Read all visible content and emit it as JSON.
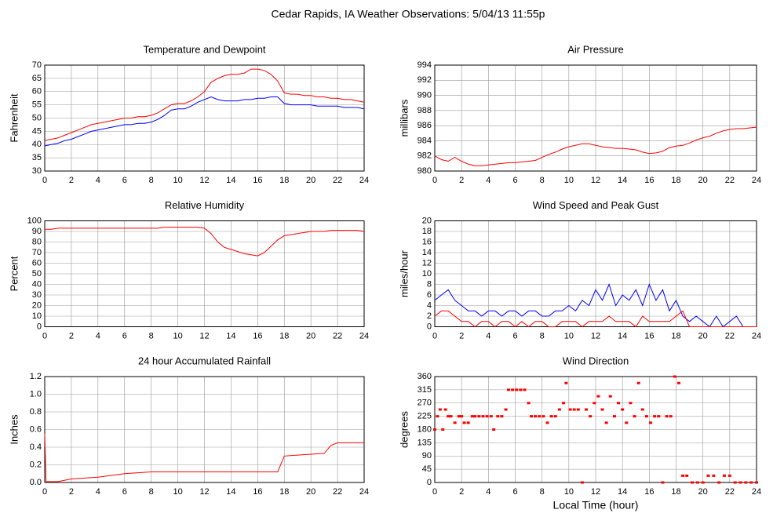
{
  "title": "Cedar Rapids, IA Weather Observations: 5/04/13 11:55p",
  "chart_data": [
    {
      "type": "line",
      "title": "Temperature and Dewpoint",
      "ylabel": "Fahrenheit",
      "x": [
        0,
        0.5,
        1,
        1.5,
        2,
        2.5,
        3,
        3.5,
        4,
        4.5,
        5,
        5.5,
        6,
        6.5,
        7,
        7.5,
        8,
        8.5,
        9,
        9.5,
        10,
        10.5,
        11,
        11.5,
        12,
        12.5,
        13,
        13.5,
        14,
        14.5,
        15,
        15.5,
        16,
        16.5,
        17,
        17.5,
        18,
        18.5,
        19,
        19.5,
        20,
        20.5,
        21,
        21.5,
        22,
        22.5,
        23,
        23.5,
        24
      ],
      "series": [
        {
          "color": "#ff0000",
          "values": [
            41.5,
            42,
            42.5,
            43.5,
            44.5,
            45.5,
            46.5,
            47.5,
            48,
            48.5,
            49,
            49.5,
            50,
            50,
            50.5,
            50.5,
            51,
            52,
            53.5,
            55,
            55.5,
            55.5,
            56.5,
            58,
            60,
            63.5,
            65,
            66,
            66.5,
            66.5,
            67,
            68.5,
            68.5,
            68,
            66.5,
            64,
            59.5,
            59,
            59,
            58.5,
            58.5,
            58,
            58,
            57.5,
            57.5,
            57,
            57,
            56.5,
            56
          ]
        },
        {
          "color": "#0000ff",
          "values": [
            39.5,
            40,
            40.5,
            41.5,
            42,
            43,
            44,
            45,
            45.5,
            46,
            46.5,
            47,
            47.5,
            47.5,
            48,
            48,
            48.5,
            49.5,
            51,
            53,
            53.5,
            53.5,
            54.5,
            56,
            57,
            58,
            57,
            56.5,
            56.5,
            56.5,
            57,
            57,
            57.5,
            57.5,
            58,
            58,
            55.5,
            55,
            55,
            55,
            55,
            54.5,
            54.5,
            54.5,
            54.5,
            54,
            54,
            54,
            53.5
          ]
        }
      ],
      "xlim": [
        0,
        24
      ],
      "xticks": [
        0,
        2,
        4,
        6,
        8,
        10,
        12,
        14,
        16,
        18,
        20,
        22,
        24
      ],
      "ylim": [
        30,
        70
      ],
      "yticks": [
        30,
        35,
        40,
        45,
        50,
        55,
        60,
        65,
        70
      ],
      "grid": true
    },
    {
      "type": "line",
      "title": "Air Pressure",
      "ylabel": "millibars",
      "x": [
        0,
        0.5,
        1,
        1.5,
        2,
        2.5,
        3,
        3.5,
        4,
        4.5,
        5,
        5.5,
        6,
        6.5,
        7,
        7.5,
        8,
        8.5,
        9,
        9.5,
        10,
        10.5,
        11,
        11.5,
        12,
        12.5,
        13,
        13.5,
        14,
        14.5,
        15,
        15.5,
        16,
        16.5,
        17,
        17.5,
        18,
        18.5,
        19,
        19.5,
        20,
        20.5,
        21,
        21.5,
        22,
        22.5,
        23,
        23.5,
        24
      ],
      "series": [
        {
          "color": "#ff0000",
          "values": [
            982,
            981.5,
            981.3,
            981.8,
            981.3,
            980.9,
            980.7,
            980.7,
            980.8,
            980.9,
            981,
            981.1,
            981.1,
            981.2,
            981.3,
            981.4,
            981.8,
            982.2,
            982.5,
            982.9,
            983.2,
            983.4,
            983.6,
            983.6,
            983.4,
            983.2,
            983.1,
            983,
            983,
            982.9,
            982.8,
            982.5,
            982.3,
            982.4,
            982.6,
            983.1,
            983.3,
            983.4,
            983.7,
            984.1,
            984.4,
            984.6,
            985,
            985.3,
            985.5,
            985.6,
            985.6,
            985.7,
            985.8
          ]
        }
      ],
      "xlim": [
        0,
        24
      ],
      "xticks": [
        0,
        2,
        4,
        6,
        8,
        10,
        12,
        14,
        16,
        18,
        20,
        22,
        24
      ],
      "ylim": [
        980,
        994
      ],
      "yticks": [
        980,
        982,
        984,
        986,
        988,
        990,
        992,
        994
      ],
      "grid": true
    },
    {
      "type": "line",
      "title": "Relative Humidity",
      "ylabel": "Percent",
      "x": [
        0,
        0.5,
        1,
        1.5,
        2,
        2.5,
        3,
        3.5,
        4,
        4.5,
        5,
        5.5,
        6,
        6.5,
        7,
        7.5,
        8,
        8.5,
        9,
        9.5,
        10,
        10.5,
        11,
        11.5,
        12,
        12.5,
        13,
        13.5,
        14,
        14.5,
        15,
        15.5,
        16,
        16.5,
        17,
        17.5,
        18,
        18.5,
        19,
        19.5,
        20,
        20.5,
        21,
        21.5,
        22,
        22.5,
        23,
        23.5,
        24
      ],
      "series": [
        {
          "color": "#ff0000",
          "values": [
            92,
            92,
            93,
            93,
            93,
            93,
            93,
            93,
            93,
            93,
            93,
            93,
            93,
            93,
            93,
            93,
            93,
            93,
            94,
            94,
            94,
            94,
            94,
            94,
            93,
            88,
            80,
            75,
            73,
            71,
            69,
            68,
            67,
            70,
            76,
            82,
            86,
            87,
            88,
            89,
            90,
            90,
            90,
            91,
            91,
            91,
            91,
            91,
            90
          ]
        }
      ],
      "xlim": [
        0,
        24
      ],
      "xticks": [
        0,
        2,
        4,
        6,
        8,
        10,
        12,
        14,
        16,
        18,
        20,
        22,
        24
      ],
      "ylim": [
        0,
        100
      ],
      "yticks": [
        0,
        10,
        20,
        30,
        40,
        50,
        60,
        70,
        80,
        90,
        100
      ],
      "grid": true
    },
    {
      "type": "line",
      "title": "Wind Speed and Peak Gust",
      "ylabel": "miles/hour",
      "x": [
        0,
        0.5,
        1,
        1.5,
        2,
        2.5,
        3,
        3.5,
        4,
        4.5,
        5,
        5.5,
        6,
        6.5,
        7,
        7.5,
        8,
        8.5,
        9,
        9.5,
        10,
        10.5,
        11,
        11.5,
        12,
        12.5,
        13,
        13.5,
        14,
        14.5,
        15,
        15.5,
        16,
        16.5,
        17,
        17.5,
        18,
        18.5,
        19,
        19.5,
        20,
        20.5,
        21,
        21.5,
        22,
        22.5,
        23,
        23.5,
        24
      ],
      "series": [
        {
          "color": "#0000ff",
          "values": [
            5,
            6,
            7,
            5,
            4,
            3,
            3,
            2,
            3,
            3,
            2,
            3,
            3,
            2,
            3,
            3,
            2,
            2,
            3,
            3,
            4,
            3,
            5,
            4,
            7,
            5,
            8,
            4,
            6,
            5,
            7,
            4,
            8,
            5,
            7,
            3,
            5,
            2,
            1,
            2,
            1,
            0,
            2,
            0,
            1,
            2,
            0,
            0,
            0
          ]
        },
        {
          "color": "#ff0000",
          "values": [
            2,
            3,
            3,
            2,
            1,
            1,
            0,
            1,
            1,
            0,
            1,
            1,
            0,
            1,
            0,
            1,
            1,
            0,
            0,
            1,
            1,
            1,
            0,
            1,
            1,
            1,
            2,
            1,
            1,
            1,
            0,
            2,
            1,
            1,
            1,
            1,
            2,
            3,
            0,
            0,
            0,
            0,
            0,
            0,
            0,
            0,
            0,
            0,
            0
          ]
        }
      ],
      "xlim": [
        0,
        24
      ],
      "xticks": [
        0,
        2,
        4,
        6,
        8,
        10,
        12,
        14,
        16,
        18,
        20,
        22,
        24
      ],
      "ylim": [
        0,
        20
      ],
      "yticks": [
        0,
        2,
        4,
        6,
        8,
        10,
        12,
        14,
        16,
        18,
        20
      ],
      "grid": true
    },
    {
      "type": "line",
      "title": "24 hour Accumulated Rainfall",
      "ylabel": "Inches",
      "x": [
        0,
        0.1,
        1,
        2,
        3,
        4,
        5,
        6,
        7,
        8,
        10,
        12,
        14,
        16,
        17.5,
        18,
        19,
        20,
        21,
        21.5,
        22,
        23,
        24
      ],
      "series": [
        {
          "color": "#ff0000",
          "values": [
            0.55,
            0.01,
            0.01,
            0.04,
            0.05,
            0.06,
            0.08,
            0.1,
            0.11,
            0.12,
            0.12,
            0.12,
            0.12,
            0.12,
            0.12,
            0.3,
            0.31,
            0.32,
            0.33,
            0.42,
            0.45,
            0.45,
            0.45
          ]
        }
      ],
      "xlim": [
        0,
        24
      ],
      "xticks": [
        0,
        2,
        4,
        6,
        8,
        10,
        12,
        14,
        16,
        18,
        20,
        22,
        24
      ],
      "ylim": [
        0,
        1.2
      ],
      "yticks": [
        {
          "value": 0,
          "label": "0.0"
        },
        0.2,
        0.4,
        0.6,
        0.8,
        {
          "value": 1,
          "label": "1.0"
        },
        1.2
      ],
      "grid": true
    },
    {
      "type": "scatter",
      "title": "Wind Direction",
      "ylabel": "degrees",
      "xlabel": "Local Time (hour)",
      "x": [
        0,
        0.2,
        0.4,
        0.6,
        0.8,
        1.0,
        1.2,
        1.5,
        1.8,
        2.0,
        2.2,
        2.5,
        2.8,
        3.0,
        3.3,
        3.6,
        3.9,
        4.2,
        4.4,
        4.7,
        5.0,
        5.3,
        5.5,
        5.8,
        6.1,
        6.4,
        6.7,
        7.0,
        7.2,
        7.5,
        7.8,
        8.1,
        8.4,
        8.7,
        9.0,
        9.3,
        9.6,
        9.8,
        10.1,
        10.4,
        10.7,
        11.0,
        11.3,
        11.6,
        11.9,
        12.2,
        12.5,
        12.8,
        13.1,
        13.4,
        13.7,
        14.0,
        14.3,
        14.6,
        14.9,
        15.2,
        15.5,
        15.8,
        16.1,
        16.4,
        16.7,
        17.0,
        17.3,
        17.6,
        17.9,
        18.2,
        18.5,
        18.8,
        19.2,
        19.6,
        20.0,
        20.4,
        20.8,
        21.2,
        21.6,
        22.0,
        22.4,
        22.8,
        23.2,
        23.6,
        24.0
      ],
      "series": [
        {
          "color": "#ff0000",
          "values": [
            180,
            225,
            248,
            180,
            248,
            225,
            225,
            203,
            225,
            225,
            203,
            203,
            225,
            225,
            225,
            225,
            225,
            225,
            180,
            225,
            225,
            248,
            315,
            315,
            315,
            315,
            315,
            270,
            225,
            225,
            225,
            225,
            203,
            225,
            225,
            248,
            270,
            338,
            248,
            248,
            248,
            0,
            248,
            225,
            270,
            293,
            248,
            203,
            293,
            225,
            270,
            248,
            203,
            270,
            225,
            338,
            248,
            225,
            203,
            225,
            225,
            0,
            225,
            225,
            360,
            338,
            23,
            23,
            0,
            0,
            0,
            23,
            23,
            0,
            23,
            23,
            0,
            0,
            0,
            0,
            0
          ]
        }
      ],
      "xlim": [
        0,
        24
      ],
      "xticks": [
        0,
        2,
        4,
        6,
        8,
        10,
        12,
        14,
        16,
        18,
        20,
        22,
        24
      ],
      "ylim": [
        0,
        360
      ],
      "yticks": [
        0,
        45,
        90,
        135,
        180,
        225,
        270,
        315,
        360
      ],
      "grid": true
    }
  ]
}
